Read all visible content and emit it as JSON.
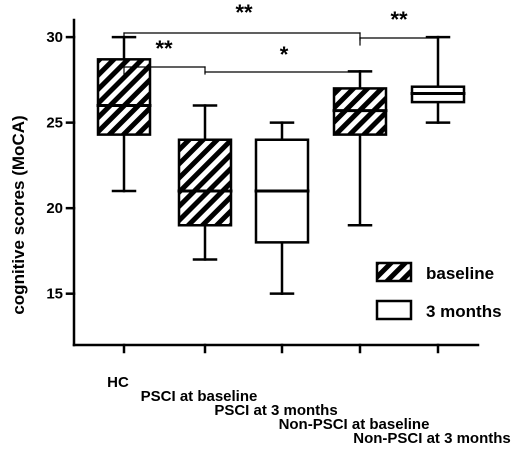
{
  "chart_data": {
    "type": "box",
    "ylabel": "cognitive scores  (MoCA)",
    "ylim": [
      12,
      31
    ],
    "yticks": [
      15,
      20,
      25,
      30
    ],
    "categories": [
      "HC",
      "PSCI at baseline",
      "PSCI at 3 months",
      "Non-PSCI at baseline",
      "Non-PSCI at 3 months"
    ],
    "boxes": [
      {
        "category": "HC",
        "group": "baseline",
        "min": 21,
        "q1": 24.3,
        "median": 26,
        "q3": 28.7,
        "max": 30
      },
      {
        "category": "PSCI at baseline",
        "group": "baseline",
        "min": 17,
        "q1": 19,
        "median": 21,
        "q3": 24,
        "max": 26
      },
      {
        "category": "PSCI at 3 months",
        "group": "3 months",
        "min": 15,
        "q1": 18,
        "median": 21,
        "q3": 24,
        "max": 25
      },
      {
        "category": "Non-PSCI at baseline",
        "group": "baseline",
        "min": 19,
        "q1": 24.3,
        "median": 25.7,
        "q3": 27,
        "max": 28
      },
      {
        "category": "Non-PSCI at 3 months",
        "group": "3 months",
        "min": 25,
        "q1": 26.2,
        "median": 26.7,
        "q3": 27.1,
        "max": 30
      }
    ],
    "legend": {
      "position": "bottom-right",
      "entries": [
        {
          "label": "baseline",
          "style": "hatched"
        },
        {
          "label": "3 months",
          "style": "open"
        }
      ]
    },
    "significance": [
      {
        "from": "HC",
        "to": "Non-PSCI at baseline",
        "label": "**"
      },
      {
        "from": "HC",
        "to": "PSCI at baseline",
        "label": "**"
      },
      {
        "from": "PSCI at baseline",
        "to": "Non-PSCI at baseline",
        "label": "*"
      },
      {
        "from": "Non-PSCI at baseline",
        "to": "Non-PSCI at 3 months",
        "label": "**"
      }
    ],
    "grid": false
  }
}
